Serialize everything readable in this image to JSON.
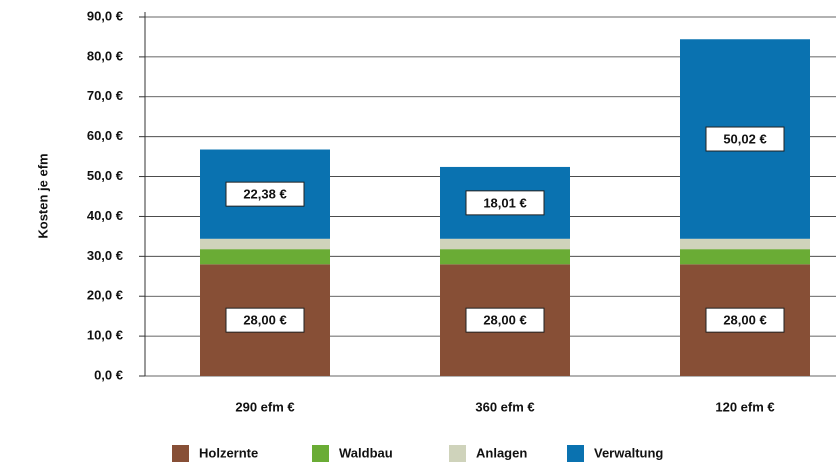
{
  "chart_data": {
    "type": "stacked_bar",
    "y_label": "Kosten je efm",
    "categories": [
      "290 efm €",
      "360 efm €",
      "120 efm €"
    ],
    "series": [
      {
        "name": "Holzernte",
        "color": "#874f36",
        "values": [
          28,
          28,
          28
        ],
        "value_labels": [
          "28,00 €",
          "28,00 €",
          "28,00 €"
        ]
      },
      {
        "name": "Waldbau",
        "color": "#6aac35",
        "values": [
          3.8,
          3.8,
          3.8
        ]
      },
      {
        "name": "Anlagen",
        "color": "#cfd3bb",
        "values": [
          2.6,
          2.6,
          2.6
        ]
      },
      {
        "name": "Verwaltung",
        "color": "#0a72b0",
        "values": [
          22.38,
          18.01,
          50.02
        ],
        "value_labels": [
          "22,38 €",
          "18,01 €",
          "50,02 €"
        ]
      }
    ],
    "ylim": [
      0,
      90
    ],
    "yticks": [
      {
        "value": 0,
        "label": "0,0 €"
      },
      {
        "value": 10,
        "label": "10,0 €"
      },
      {
        "value": 20,
        "label": "20,0 €"
      },
      {
        "value": 30,
        "label": "30,0 €"
      },
      {
        "value": 40,
        "label": "40,0 €"
      },
      {
        "value": 50,
        "label": "50,0 €"
      },
      {
        "value": 60,
        "label": "60,0 €"
      },
      {
        "value": 70,
        "label": "70,0 €"
      },
      {
        "value": 80,
        "label": "80,0 €"
      },
      {
        "value": 90,
        "label": "90,0 €"
      }
    ],
    "grid": true
  }
}
